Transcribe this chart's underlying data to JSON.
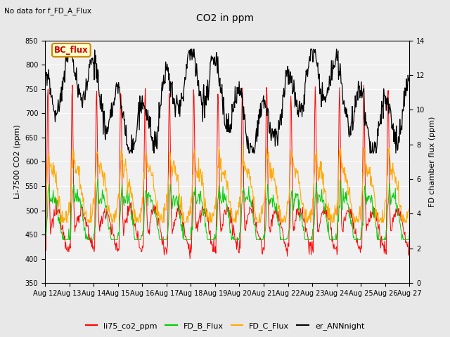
{
  "title": "CO2 in ppm",
  "top_annotation": "No data for f_FD_A_Flux",
  "bc_flux_label": "BC_flux",
  "ylabel_left": "Li-7500 CO2 (ppm)",
  "ylabel_right": "FD chamber flux (ppm)",
  "ylim_left": [
    350,
    850
  ],
  "ylim_right": [
    0,
    14
  ],
  "yticks_left": [
    350,
    400,
    450,
    500,
    550,
    600,
    650,
    700,
    750,
    800,
    850
  ],
  "yticks_right": [
    0,
    2,
    4,
    6,
    8,
    10,
    12,
    14
  ],
  "xtick_labels": [
    "Aug 12",
    "Aug 13",
    "Aug 14",
    "Aug 15",
    "Aug 16",
    "Aug 17",
    "Aug 18",
    "Aug 19",
    "Aug 20",
    "Aug 21",
    "Aug 22",
    "Aug 23",
    "Aug 24",
    "Aug 25",
    "Aug 26",
    "Aug 27"
  ],
  "colors": {
    "li75_co2_ppm": "#ff0000",
    "FD_B_Flux": "#00cc00",
    "FD_C_Flux": "#ffaa00",
    "er_ANNnight": "#000000"
  },
  "legend_labels": [
    "li75_co2_ppm",
    "FD_B_Flux",
    "FD_C_Flux",
    "er_ANNnight"
  ],
  "background_color": "#e8e8e8",
  "plot_bg_color": "#f0f0f0",
  "grid_color": "#ffffff"
}
